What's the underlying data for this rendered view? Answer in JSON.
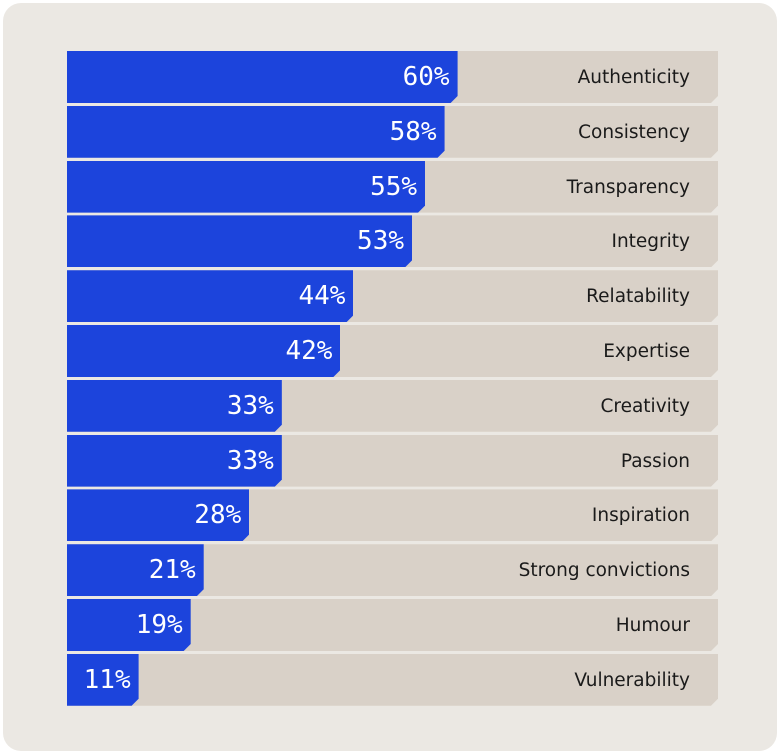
{
  "chart_data": {
    "type": "bar",
    "orientation": "horizontal",
    "categories": [
      "Authenticity",
      "Consistency",
      "Transparency",
      "Integrity",
      "Relatability",
      "Expertise",
      "Creativity",
      "Passion",
      "Inspiration",
      "Strong convictions",
      "Humour",
      "Vulnerability"
    ],
    "values": [
      60,
      58,
      55,
      53,
      44,
      42,
      33,
      33,
      28,
      21,
      19,
      11
    ],
    "value_labels": [
      "60%",
      "58%",
      "55%",
      "53%",
      "44%",
      "42%",
      "33%",
      "33%",
      "28%",
      "21%",
      "19%",
      "11%"
    ],
    "xlim": [
      0,
      100
    ],
    "grid": false,
    "colors": {
      "bar": "#1c44dc",
      "track": "#d9d1c8",
      "background": "#ebe8e3"
    }
  }
}
